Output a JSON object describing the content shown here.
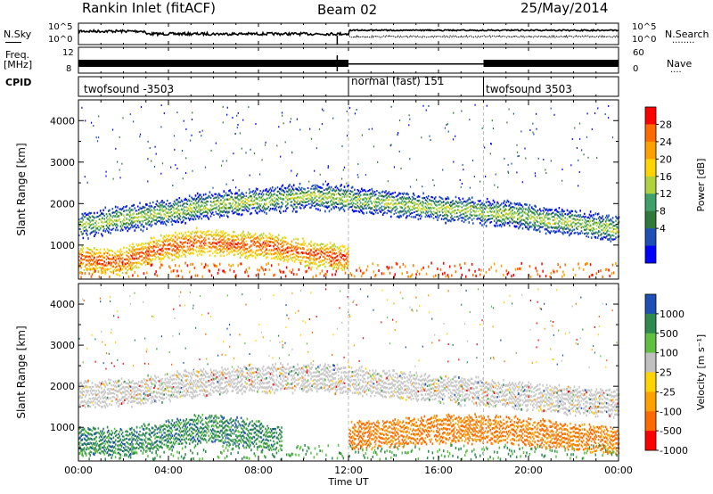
{
  "header": {
    "station": "Rankin Inlet (fitACF)",
    "beam": "Beam 02",
    "date": "25/May/2014"
  },
  "left_labels": {
    "nsky": "N.Sky",
    "freq_line1": "Freq.",
    "freq_line2": "[MHz]",
    "cpid": "CPID"
  },
  "right_labels": {
    "nsearch": "N.Search",
    "nsearch_dots": "........",
    "nave": "Nave",
    "nave_dots": "...."
  },
  "noise_panel": {
    "left_ticks": [
      "10^5",
      "10^0"
    ],
    "right_ticks": [
      "10^5",
      "10^0"
    ]
  },
  "freq_panel": {
    "left_ticks": [
      "12",
      "8"
    ],
    "right_ticks": [
      "60",
      "0"
    ]
  },
  "cpid_segments": [
    {
      "label": "twofsound -3503",
      "start_hour": 0,
      "end_hour": 12
    },
    {
      "label": "normal (fast) 151",
      "start_hour": 12,
      "end_hour": 18
    },
    {
      "label": "twofsound 3503",
      "start_hour": 18,
      "end_hour": 24
    }
  ],
  "power_colorbar": {
    "label": "Power [dB]",
    "ticks": [
      "28",
      "24",
      "20",
      "16",
      "12",
      "8",
      "4"
    ],
    "colors": [
      "#ff0000",
      "#ff6a00",
      "#ffa000",
      "#ffd400",
      "#b0d23c",
      "#3fa06a",
      "#2f7a3a",
      "#1e4fb4",
      "#0000ff"
    ]
  },
  "velocity_colorbar": {
    "label": "Velocity [m s⁻¹]",
    "ticks": [
      "1000",
      "500",
      "100",
      "25",
      "-25",
      "-100",
      "-500",
      "-1000"
    ],
    "colors": [
      "#1e4fb4",
      "#2f8a50",
      "#5fc040",
      "#c0c0c0",
      "#ffd400",
      "#ffa000",
      "#ff6a00",
      "#ff0000"
    ]
  },
  "chart_data": [
    {
      "type": "heatmap",
      "name": "power",
      "ylabel": "Slant Range [km]",
      "ylim": [
        180,
        4500
      ],
      "yticks": [
        1000,
        2000,
        3000,
        4000
      ],
      "xlim": [
        0,
        24
      ],
      "xticks": [
        "00:00",
        "04:00",
        "08:00",
        "12:00",
        "16:00",
        "20:00",
        "00:00"
      ],
      "colorbar_label": "Power [dB]",
      "bands": [
        {
          "hours": [
            0,
            24
          ],
          "ranges_km": [
            1500,
            1700,
            1950,
            2100,
            2200,
            2050,
            1900,
            1800,
            1600,
            1400
          ],
          "value_dB": 14
        },
        {
          "hours": [
            0,
            12
          ],
          "ranges_km": [
            700,
            600,
            900,
            1100,
            1050,
            1000,
            800,
            700
          ],
          "value_dB": 24
        }
      ]
    },
    {
      "type": "heatmap",
      "name": "velocity",
      "ylabel": "Slant Range [km]",
      "ylim": [
        180,
        4500
      ],
      "yticks": [
        1000,
        2000,
        3000,
        4000
      ],
      "xlim": [
        0,
        24
      ],
      "xticks": [
        "00:00",
        "04:00",
        "08:00",
        "12:00",
        "16:00",
        "20:00",
        "00:00"
      ],
      "xlabel": "Time UT",
      "colorbar_label": "Velocity [m s⁻¹]",
      "bands": [
        {
          "hours": [
            0,
            24
          ],
          "ranges_km": [
            1800,
            1900,
            2100,
            2200,
            2250,
            2100,
            1950,
            1850,
            1700,
            1600
          ],
          "value_ms": 0
        },
        {
          "hours": [
            0,
            9
          ],
          "ranges_km": [
            700,
            650,
            800,
            1000,
            900,
            750
          ],
          "value_ms": 400
        },
        {
          "hours": [
            12,
            24
          ],
          "ranges_km": [
            800,
            900,
            1000,
            950,
            800,
            700
          ],
          "value_ms": -300
        }
      ]
    }
  ]
}
